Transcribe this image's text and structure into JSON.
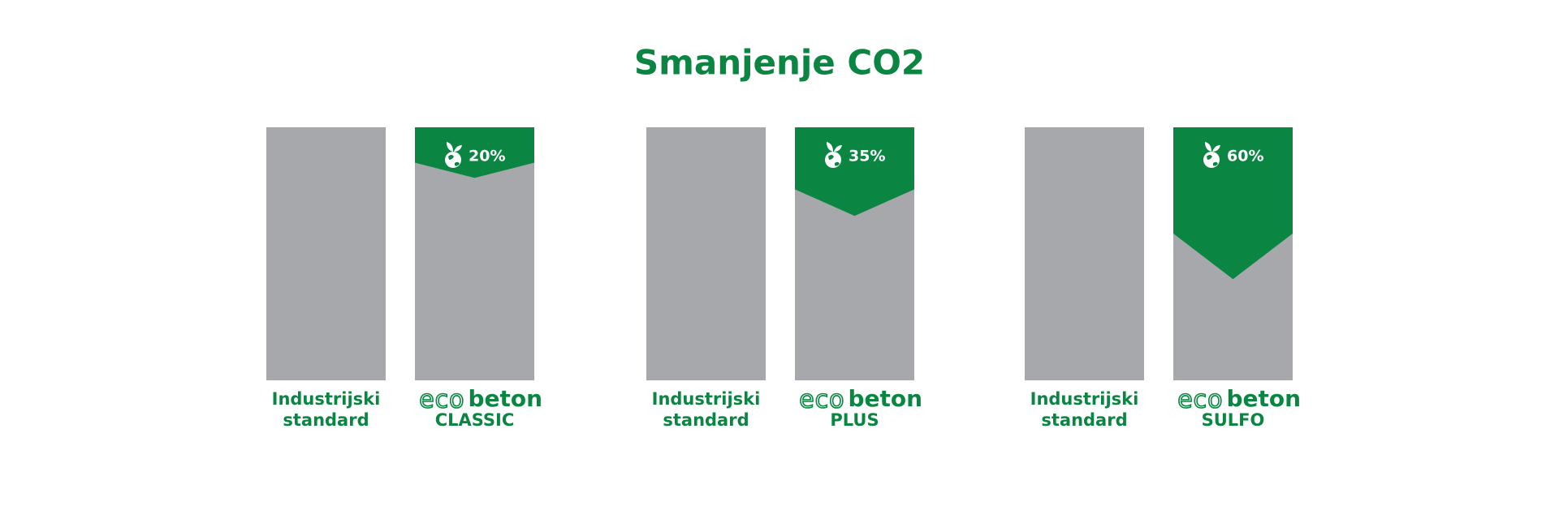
{
  "chart_data": {
    "type": "reduction",
    "title": "Smanjenje CO2",
    "groups": [
      {
        "baseline_label": [
          "Industrijski",
          "standard"
        ],
        "product_label": {
          "prefix": "eco",
          "brand": "beton",
          "name": "CLASSIC"
        }
      },
      {
        "baseline_label": [
          "Industrijski",
          "standard"
        ],
        "product_label": {
          "prefix": "eco",
          "brand": "beton",
          "name": "PLUS"
        }
      },
      {
        "baseline_label": [
          "Industrijski",
          "standard"
        ],
        "product_label": {
          "prefix": "eco",
          "brand": "beton",
          "name": "SULFO"
        }
      }
    ],
    "values": [
      20,
      35,
      60
    ],
    "value_labels": [
      "20%",
      "35%",
      "60%"
    ],
    "colors": {
      "baseline": "#a7a8ab",
      "reduction": "#0b8642",
      "text": "#0b8642"
    }
  }
}
